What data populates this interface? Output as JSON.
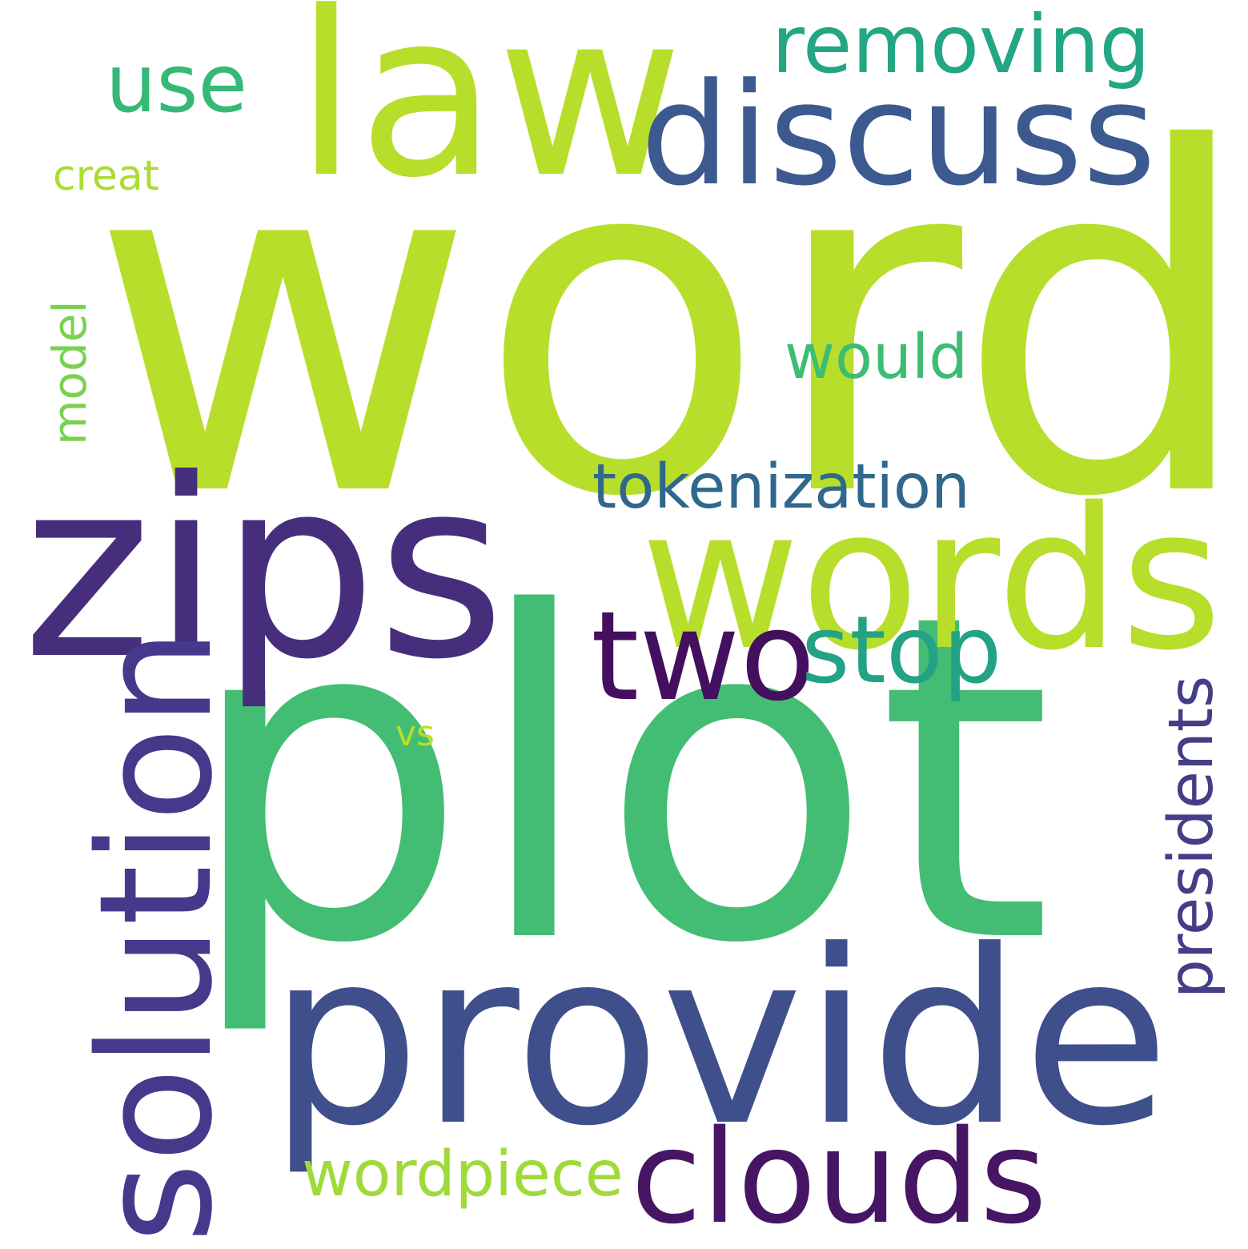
{
  "words": [
    {
      "text": "word",
      "color": "#b7de2a"
    },
    {
      "text": "plot",
      "color": "#43bd74"
    },
    {
      "text": "provide",
      "color": "#3f4f8b"
    },
    {
      "text": "zips",
      "color": "#472e7c"
    },
    {
      "text": "words",
      "color": "#b7de2a"
    },
    {
      "text": "law",
      "color": "#b7de2a"
    },
    {
      "text": "discuss",
      "color": "#3c5a8f"
    },
    {
      "text": "solution",
      "color": "#46398b"
    },
    {
      "text": "clouds",
      "color": "#461664"
    },
    {
      "text": "two",
      "color": "#440f5f"
    },
    {
      "text": "stop",
      "color": "#23a286"
    },
    {
      "text": "removing",
      "color": "#22a683"
    },
    {
      "text": "use",
      "color": "#36b877"
    },
    {
      "text": "tokenization",
      "color": "#30688d"
    },
    {
      "text": "would",
      "color": "#3dbc74"
    },
    {
      "text": "presidents",
      "color": "#433e85"
    },
    {
      "text": "wordpiece",
      "color": "#9fda3a"
    },
    {
      "text": "model",
      "color": "#7ad151"
    },
    {
      "text": "creat",
      "color": "#aadc32"
    },
    {
      "text": "vs",
      "color": "#b8de29"
    }
  ]
}
